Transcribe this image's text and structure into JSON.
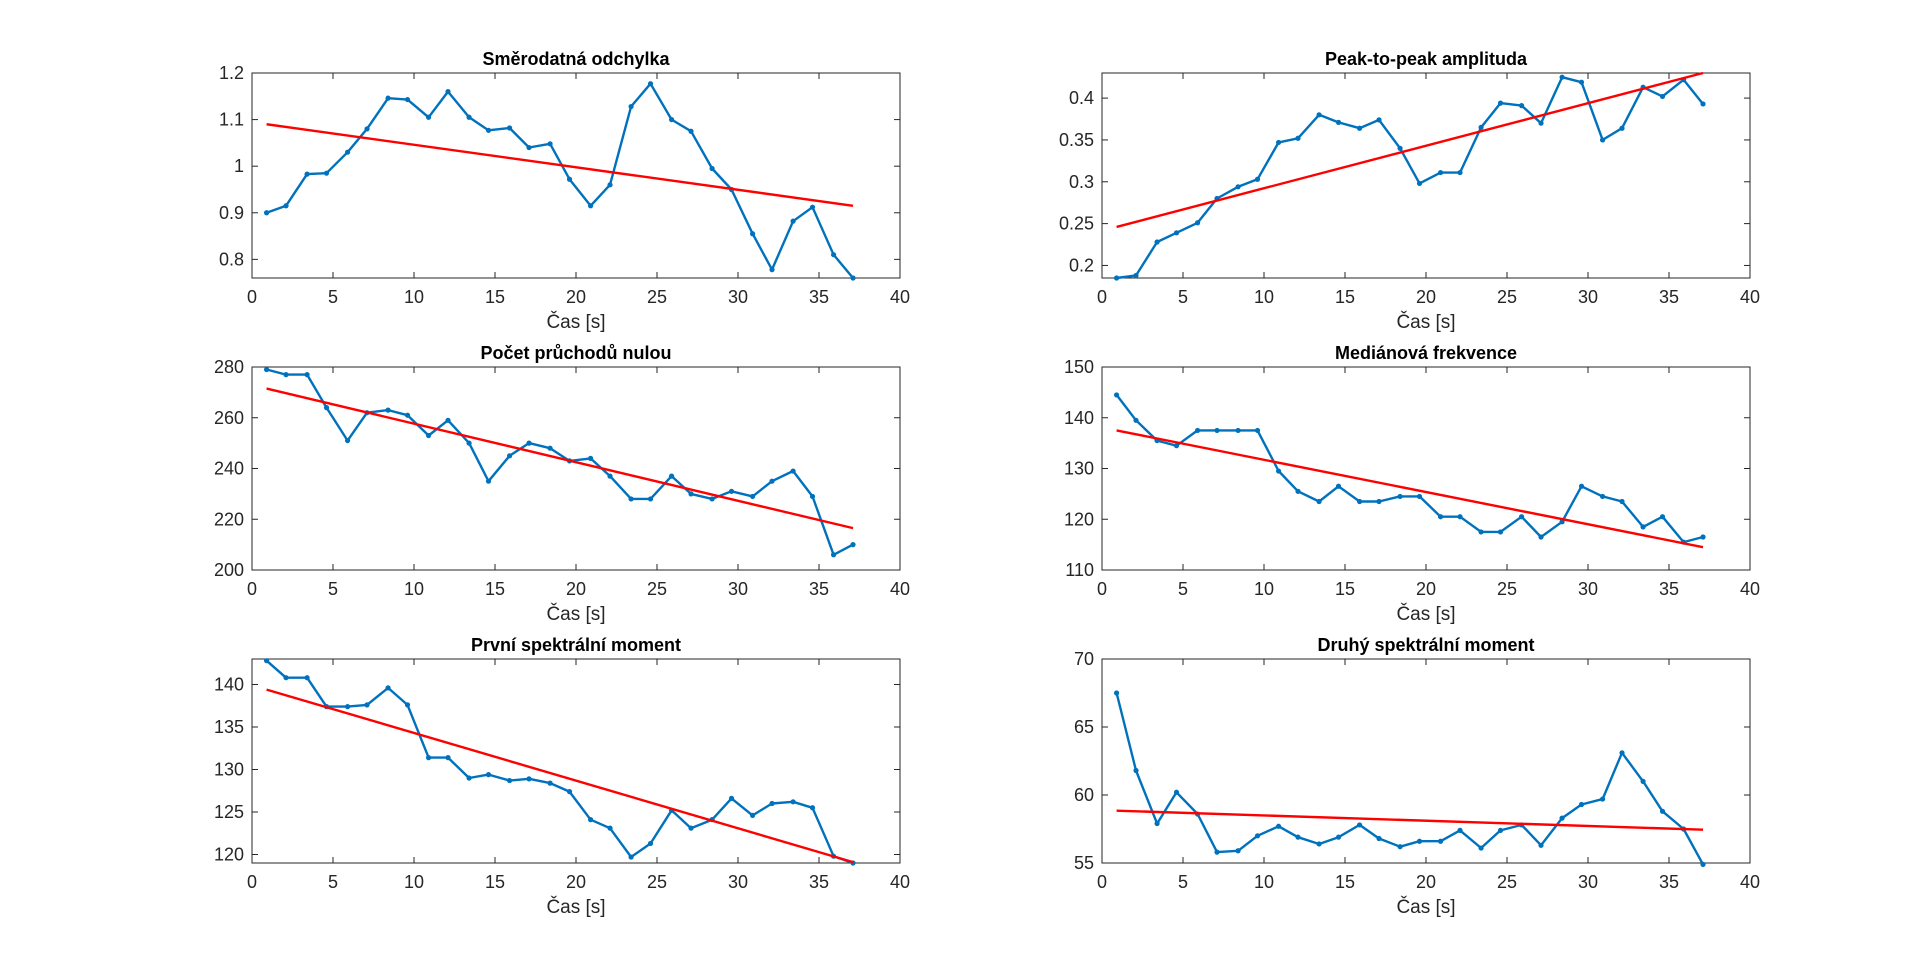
{
  "chart_data": [
    {
      "type": "line",
      "title": "Směrodatná odchylka",
      "xlabel": "Čas [s]",
      "ylabel": "",
      "xlim": [
        0,
        40
      ],
      "ylim": [
        0.76,
        1.2
      ],
      "xticks": [
        0,
        5,
        10,
        15,
        20,
        25,
        30,
        35,
        40
      ],
      "yticks": [
        0.8,
        0.9,
        1,
        1.1,
        1.2
      ],
      "series": [
        {
          "color": "#0072BD",
          "x": [
            0.9,
            2.1,
            3.4,
            4.6,
            5.9,
            7.1,
            8.4,
            9.6,
            10.9,
            12.1,
            13.4,
            14.6,
            15.9,
            17.1,
            18.4,
            19.6,
            20.9,
            22.1,
            23.4,
            24.6,
            25.9,
            27.1,
            28.4,
            29.6,
            30.9,
            32.1,
            33.4,
            34.6,
            35.9,
            37.1
          ],
          "values": [
            0.9,
            0.915,
            0.983,
            0.985,
            1.03,
            1.08,
            1.146,
            1.143,
            1.105,
            1.16,
            1.105,
            1.077,
            1.082,
            1.04,
            1.048,
            0.972,
            0.915,
            0.96,
            1.128,
            1.177,
            1.1,
            1.075,
            0.995,
            0.95,
            0.855,
            0.778,
            0.882,
            0.912,
            0.81,
            0.76
          ]
        },
        {
          "color": "#FF0000",
          "x": [
            0.9,
            37.1
          ],
          "values": [
            1.09,
            0.915
          ]
        }
      ]
    },
    {
      "type": "line",
      "title": "Peak-to-peak amplituda",
      "xlabel": "Čas [s]",
      "ylabel": "",
      "xlim": [
        0,
        40
      ],
      "ylim": [
        0.185,
        0.43
      ],
      "xticks": [
        0,
        5,
        10,
        15,
        20,
        25,
        30,
        35,
        40
      ],
      "yticks": [
        0.2,
        0.25,
        0.3,
        0.35,
        0.4
      ],
      "series": [
        {
          "color": "#0072BD",
          "x": [
            0.9,
            2.1,
            3.4,
            4.6,
            5.9,
            7.1,
            8.4,
            9.6,
            10.9,
            12.1,
            13.4,
            14.6,
            15.9,
            17.1,
            18.4,
            19.6,
            20.9,
            22.1,
            23.4,
            24.6,
            25.9,
            27.1,
            28.4,
            29.6,
            30.9,
            32.1,
            33.4,
            34.6,
            35.9,
            37.1
          ],
          "values": [
            0.185,
            0.188,
            0.228,
            0.239,
            0.251,
            0.28,
            0.294,
            0.303,
            0.347,
            0.352,
            0.38,
            0.371,
            0.364,
            0.374,
            0.34,
            0.298,
            0.311,
            0.311,
            0.365,
            0.394,
            0.391,
            0.37,
            0.425,
            0.419,
            0.35,
            0.364,
            0.413,
            0.402,
            0.422,
            0.393
          ]
        },
        {
          "color": "#FF0000",
          "x": [
            0.9,
            37.1
          ],
          "values": [
            0.246,
            0.43
          ]
        }
      ]
    },
    {
      "type": "line",
      "title": "Počet průchodů nulou",
      "xlabel": "Čas [s]",
      "ylabel": "",
      "xlim": [
        0,
        40
      ],
      "ylim": [
        200,
        280
      ],
      "xticks": [
        0,
        5,
        10,
        15,
        20,
        25,
        30,
        35,
        40
      ],
      "yticks": [
        200,
        220,
        240,
        260,
        280
      ],
      "series": [
        {
          "color": "#0072BD",
          "x": [
            0.9,
            2.1,
            3.4,
            4.6,
            5.9,
            7.1,
            8.4,
            9.6,
            10.9,
            12.1,
            13.4,
            14.6,
            15.9,
            17.1,
            18.4,
            19.6,
            20.9,
            22.1,
            23.4,
            24.6,
            25.9,
            27.1,
            28.4,
            29.6,
            30.9,
            32.1,
            33.4,
            34.6,
            35.9,
            37.1
          ],
          "values": [
            279,
            277,
            277,
            264,
            251,
            262,
            263,
            261,
            253,
            259,
            250,
            235,
            245,
            250,
            248,
            243,
            244,
            237,
            228,
            228,
            237,
            230,
            228,
            231,
            229,
            235,
            239,
            229,
            206,
            210
          ]
        },
        {
          "color": "#FF0000",
          "x": [
            0.9,
            37.1
          ],
          "values": [
            271.5,
            216.5
          ]
        }
      ]
    },
    {
      "type": "line",
      "title": "Mediánová frekvence",
      "xlabel": "Čas [s]",
      "ylabel": "",
      "xlim": [
        0,
        40
      ],
      "ylim": [
        110,
        150
      ],
      "xticks": [
        0,
        5,
        10,
        15,
        20,
        25,
        30,
        35,
        40
      ],
      "yticks": [
        110,
        120,
        130,
        140,
        150
      ],
      "series": [
        {
          "color": "#0072BD",
          "x": [
            0.9,
            2.1,
            3.4,
            4.6,
            5.9,
            7.1,
            8.4,
            9.6,
            10.9,
            12.1,
            13.4,
            14.6,
            15.9,
            17.1,
            18.4,
            19.6,
            20.9,
            22.1,
            23.4,
            24.6,
            25.9,
            27.1,
            28.4,
            29.6,
            30.9,
            32.1,
            33.4,
            34.6,
            35.9,
            37.1
          ],
          "values": [
            144.5,
            139.5,
            135.5,
            134.5,
            137.5,
            137.5,
            137.5,
            137.5,
            129.5,
            125.5,
            123.5,
            126.5,
            123.5,
            123.5,
            124.5,
            124.5,
            120.5,
            120.5,
            117.5,
            117.5,
            120.5,
            116.5,
            119.5,
            126.5,
            124.5,
            123.5,
            118.5,
            120.5,
            115.5,
            116.5
          ]
        },
        {
          "color": "#FF0000",
          "x": [
            0.9,
            37.1
          ],
          "values": [
            137.5,
            114.5
          ]
        }
      ]
    },
    {
      "type": "line",
      "title": "První spektrální moment",
      "xlabel": "Čas [s]",
      "ylabel": "",
      "xlim": [
        0,
        40
      ],
      "ylim": [
        119,
        143
      ],
      "xticks": [
        0,
        5,
        10,
        15,
        20,
        25,
        30,
        35,
        40
      ],
      "yticks": [
        120,
        125,
        130,
        135,
        140
      ],
      "series": [
        {
          "color": "#0072BD",
          "x": [
            0.9,
            2.1,
            3.4,
            4.6,
            5.9,
            7.1,
            8.4,
            9.6,
            10.9,
            12.1,
            13.4,
            14.6,
            15.9,
            17.1,
            18.4,
            19.6,
            20.9,
            22.1,
            23.4,
            24.6,
            25.9,
            27.1,
            28.4,
            29.6,
            30.9,
            32.1,
            33.4,
            34.6,
            35.9,
            37.1
          ],
          "values": [
            142.8,
            140.8,
            140.8,
            137.4,
            137.4,
            137.6,
            139.6,
            137.6,
            131.4,
            131.4,
            129.0,
            129.4,
            128.7,
            128.9,
            128.4,
            127.4,
            124.1,
            123.1,
            119.7,
            121.3,
            125.2,
            123.1,
            124.1,
            126.6,
            124.6,
            126.0,
            126.2,
            125.5,
            119.8,
            119.0
          ]
        },
        {
          "color": "#FF0000",
          "x": [
            0.9,
            37.1
          ],
          "values": [
            139.4,
            119.1
          ]
        }
      ]
    },
    {
      "type": "line",
      "title": "Druhý spektrální moment",
      "xlabel": "Čas [s]",
      "ylabel": "",
      "xlim": [
        0,
        40
      ],
      "ylim": [
        55,
        70
      ],
      "xticks": [
        0,
        5,
        10,
        15,
        20,
        25,
        30,
        35,
        40
      ],
      "yticks": [
        55,
        60,
        65,
        70
      ],
      "series": [
        {
          "color": "#0072BD",
          "x": [
            0.9,
            2.1,
            3.4,
            4.6,
            5.9,
            7.1,
            8.4,
            9.6,
            10.9,
            12.1,
            13.4,
            14.6,
            15.9,
            17.1,
            18.4,
            19.6,
            20.9,
            22.1,
            23.4,
            24.6,
            25.9,
            27.1,
            28.4,
            29.6,
            30.9,
            32.1,
            33.4,
            34.6,
            35.9,
            37.1
          ],
          "values": [
            67.5,
            61.8,
            57.9,
            60.2,
            58.6,
            55.8,
            55.9,
            57.0,
            57.7,
            56.9,
            56.4,
            56.9,
            57.8,
            56.8,
            56.2,
            56.6,
            56.6,
            57.4,
            56.1,
            57.4,
            57.8,
            56.3,
            58.3,
            59.3,
            59.7,
            63.1,
            61.0,
            58.8,
            57.5,
            54.9
          ]
        },
        {
          "color": "#FF0000",
          "x": [
            0.9,
            37.1
          ],
          "values": [
            58.85,
            57.45
          ]
        }
      ]
    }
  ]
}
